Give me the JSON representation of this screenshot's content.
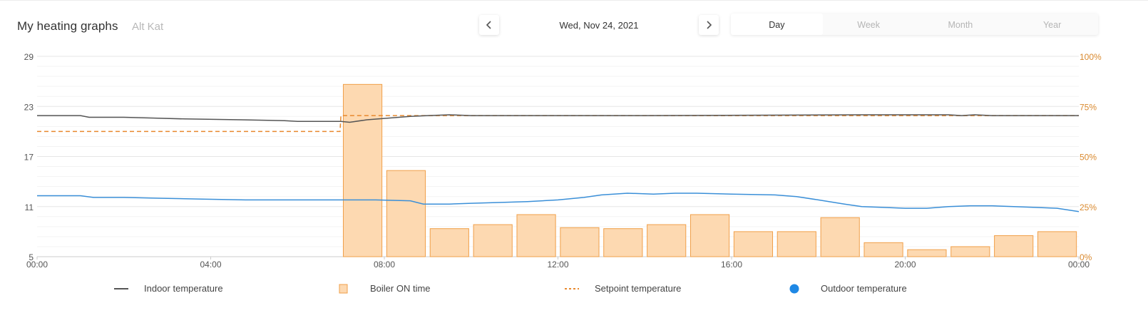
{
  "header": {
    "title": "My heating graphs",
    "subtitle": "Alt Kat",
    "date": "Wed, Nov 24, 2021",
    "prev_icon": "chevron-left-icon",
    "next_icon": "chevron-right-icon",
    "tabs": [
      {
        "label": "Day",
        "active": true
      },
      {
        "label": "Week",
        "active": false
      },
      {
        "label": "Month",
        "active": false
      },
      {
        "label": "Year",
        "active": false
      }
    ]
  },
  "legend": [
    {
      "label": "Indoor temperature",
      "symbol": "line",
      "color": "#555555"
    },
    {
      "label": "Boiler ON time",
      "symbol": "box",
      "color": "#f0a04a"
    },
    {
      "label": "Setpoint temperature",
      "symbol": "dash",
      "color": "#e8892e"
    },
    {
      "label": "Outdoor temperature",
      "symbol": "dot",
      "color": "#1e88e5"
    }
  ],
  "chart_data": {
    "type": "bar",
    "x_tick_labels": [
      "00:00",
      "04:00",
      "08:00",
      "12:00",
      "16:00",
      "20:00",
      "00:00"
    ],
    "xlim": [
      0,
      24
    ],
    "y_left": {
      "ticks": [
        "29",
        "23",
        "17",
        "11",
        "5"
      ],
      "lim": [
        5,
        29
      ]
    },
    "y_right": {
      "ticks": [
        "100%",
        "75%",
        "50%",
        "25%",
        "0%"
      ],
      "lim": [
        0,
        100
      ]
    },
    "grid": true,
    "colors": {
      "indoor": "#555555",
      "setpoint": "#e8892e",
      "outdoor": "#3a8fd8",
      "bar_fill": "#fdd9b1",
      "bar_stroke": "#f0a04a",
      "right_axis_text": "#d9892e"
    },
    "boiler_on_time_pct": {
      "hours": [
        7,
        8,
        9,
        10,
        11,
        12,
        13,
        14,
        15,
        16,
        17,
        18,
        19,
        20,
        21,
        22,
        23
      ],
      "values": [
        86,
        43,
        14,
        16,
        21,
        14.5,
        14,
        16,
        21,
        12.5,
        12.5,
        19.5,
        7,
        3.5,
        5,
        10.5,
        12.5
      ]
    },
    "indoor_temperature": {
      "x": [
        0,
        1,
        1.2,
        2,
        2.7,
        3.4,
        4.7,
        5.7,
        6,
        7,
        7.2,
        7.6,
        8.1,
        8.6,
        9,
        9.5,
        10,
        12,
        14,
        19,
        20,
        21,
        21.3,
        21.6,
        22,
        23,
        24
      ],
      "y": [
        21.9,
        21.9,
        21.7,
        21.7,
        21.6,
        21.5,
        21.4,
        21.3,
        21.2,
        21.2,
        21.1,
        21.4,
        21.6,
        21.8,
        21.9,
        22.0,
        21.9,
        21.9,
        21.9,
        22.0,
        22.0,
        22.0,
        21.9,
        22.0,
        21.9,
        21.9,
        21.9
      ]
    },
    "setpoint_temperature": {
      "x": [
        0,
        6.98,
        7.0,
        24
      ],
      "y": [
        20.0,
        20.0,
        21.9,
        21.9
      ]
    },
    "outdoor_temperature": {
      "x": [
        0,
        1,
        1.3,
        2,
        2.8,
        3.8,
        4.8,
        5.8,
        6.8,
        7.8,
        8.6,
        8.9,
        9.5,
        10,
        10.7,
        11.3,
        12,
        12.6,
        13,
        13.6,
        14.2,
        14.7,
        15.2,
        16,
        17,
        17.5,
        18,
        18.6,
        19,
        19.5,
        20,
        20.5,
        21,
        21.5,
        22,
        22.5,
        23,
        23.5,
        24
      ],
      "y": [
        12.3,
        12.3,
        12.1,
        12.1,
        12.0,
        11.9,
        11.8,
        11.8,
        11.8,
        11.8,
        11.7,
        11.3,
        11.3,
        11.4,
        11.5,
        11.6,
        11.8,
        12.1,
        12.4,
        12.6,
        12.5,
        12.6,
        12.6,
        12.5,
        12.4,
        12.2,
        11.8,
        11.3,
        11.0,
        10.9,
        10.8,
        10.8,
        11.0,
        11.1,
        11.1,
        11.0,
        10.9,
        10.8,
        10.4
      ]
    }
  }
}
